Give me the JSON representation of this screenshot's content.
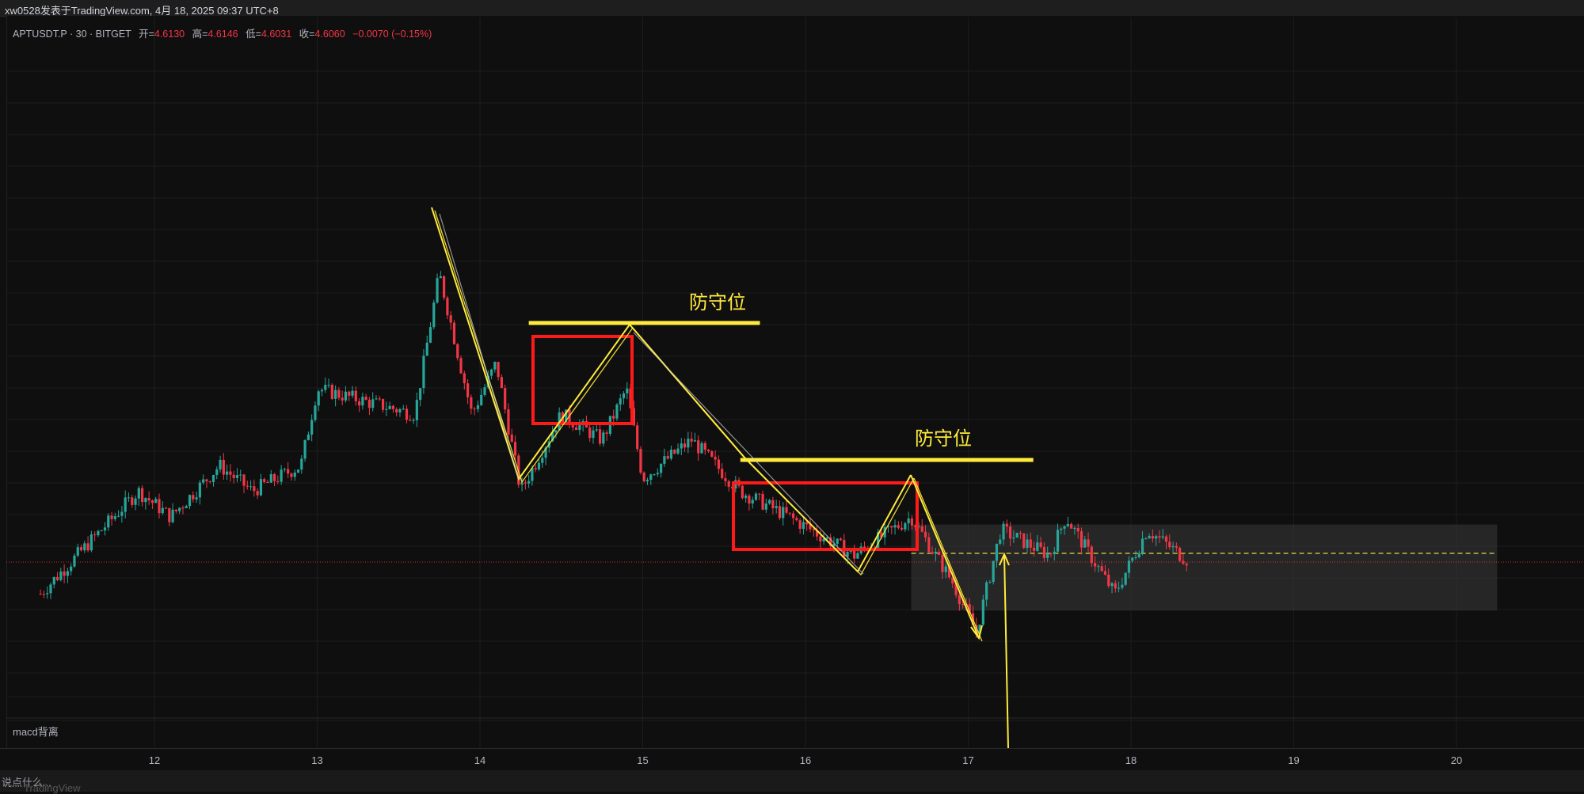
{
  "header": {
    "publisher_line": "xw0528发表于TradingView.com, 4月 18, 2025 09:37 UTC+8"
  },
  "legend": {
    "symbol": "APTUSDT.P · 30 · BITGET",
    "open_label": "开=",
    "open": "4.6130",
    "high_label": "高=",
    "high": "4.6146",
    "low_label": "低=",
    "low": "4.6031",
    "close_label": "收=",
    "close": "4.6060",
    "change": "−0.0070 (−0.15%)"
  },
  "pane": {
    "label": "macd背离"
  },
  "footer": {
    "hint": "说点什么...",
    "watermark": "TradingView"
  },
  "colors": {
    "up": "#26a69a",
    "down": "#f23645",
    "annotation_yellow": "#ffeb3b",
    "box_red": "#ff1a1a",
    "zone": "#3a3a3a",
    "background": "#0f0f0f"
  },
  "annotations": [
    {
      "label": "防守位",
      "kind": "horizontal-level",
      "value": 4.75,
      "from_day": 14.3,
      "to_day": 15.72
    },
    {
      "label": "防守位",
      "kind": "horizontal-level",
      "value": 4.65,
      "from_day": 15.6,
      "to_day": 17.4
    }
  ],
  "chart_data": {
    "type": "candlestick",
    "x_ticks": [
      "12",
      "13",
      "14",
      "15",
      "16",
      "17",
      "18",
      "19",
      "20"
    ],
    "y_range": [
      4.45,
      4.95
    ],
    "close_path": [
      {
        "day": 11.3,
        "price": 4.58
      },
      {
        "day": 11.6,
        "price": 4.62
      },
      {
        "day": 11.9,
        "price": 4.66
      },
      {
        "day": 12.1,
        "price": 4.64
      },
      {
        "day": 12.4,
        "price": 4.68
      },
      {
        "day": 12.6,
        "price": 4.66
      },
      {
        "day": 12.9,
        "price": 4.68
      },
      {
        "day": 13.0,
        "price": 4.74
      },
      {
        "day": 13.3,
        "price": 4.73
      },
      {
        "day": 13.6,
        "price": 4.72
      },
      {
        "day": 13.75,
        "price": 4.83
      },
      {
        "day": 13.95,
        "price": 4.72
      },
      {
        "day": 14.1,
        "price": 4.76
      },
      {
        "day": 14.25,
        "price": 4.66
      },
      {
        "day": 14.5,
        "price": 4.72
      },
      {
        "day": 14.75,
        "price": 4.7
      },
      {
        "day": 14.9,
        "price": 4.74
      },
      {
        "day": 15.0,
        "price": 4.67
      },
      {
        "day": 15.3,
        "price": 4.7
      },
      {
        "day": 15.6,
        "price": 4.66
      },
      {
        "day": 15.9,
        "price": 4.64
      },
      {
        "day": 16.3,
        "price": 4.61
      },
      {
        "day": 16.65,
        "price": 4.64
      },
      {
        "day": 16.9,
        "price": 4.59
      },
      {
        "day": 17.05,
        "price": 4.55
      },
      {
        "day": 17.2,
        "price": 4.63
      },
      {
        "day": 17.5,
        "price": 4.61
      },
      {
        "day": 17.6,
        "price": 4.64
      },
      {
        "day": 17.9,
        "price": 4.58
      },
      {
        "day": 18.1,
        "price": 4.63
      },
      {
        "day": 18.35,
        "price": 4.606
      }
    ]
  }
}
